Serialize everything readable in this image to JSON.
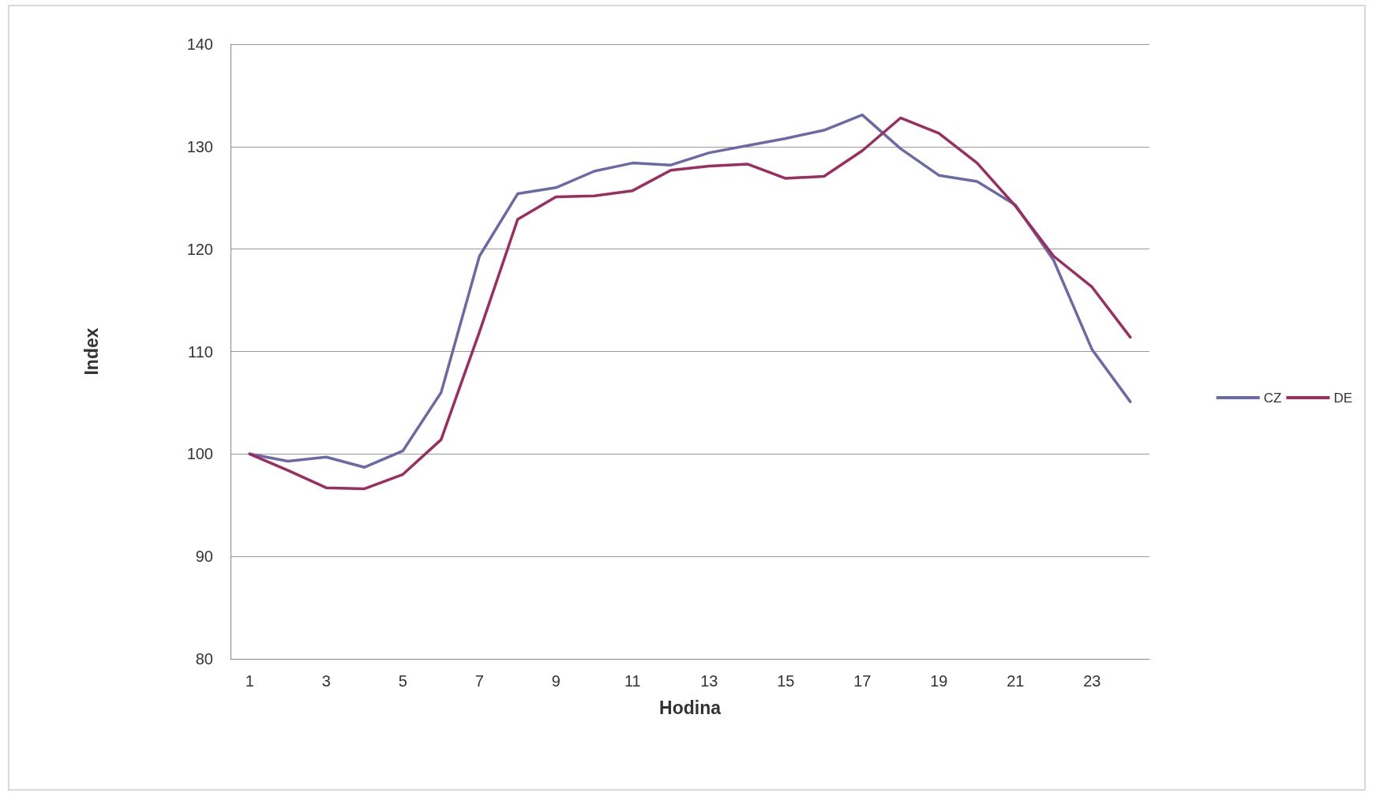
{
  "chart_data": {
    "type": "line",
    "xlabel": "Hodina",
    "ylabel": "Index",
    "x": [
      1,
      2,
      3,
      4,
      5,
      6,
      7,
      8,
      9,
      10,
      11,
      12,
      13,
      14,
      15,
      16,
      17,
      18,
      19,
      20,
      21,
      22,
      23,
      24
    ],
    "xlim": [
      0.5,
      24.5
    ],
    "xticks": [
      1,
      3,
      5,
      7,
      9,
      11,
      13,
      15,
      17,
      19,
      21,
      23
    ],
    "series": [
      {
        "name": "CZ",
        "color": "#6b6aa6",
        "values": [
          100,
          99.3,
          99.7,
          98.7,
          100.3,
          106,
          119.3,
          125.4,
          126,
          127.6,
          128.4,
          128.2,
          129.4,
          130.1,
          130.8,
          131.6,
          133.1,
          129.8,
          127.2,
          126.6,
          124.3,
          118.9,
          110.2,
          105.1
        ]
      },
      {
        "name": "DE",
        "color": "#9b2d5f",
        "values": [
          100,
          98.4,
          96.7,
          96.6,
          98,
          101.4,
          111.9,
          122.9,
          125.1,
          125.2,
          125.7,
          127.7,
          128.1,
          128.3,
          126.9,
          127.1,
          129.6,
          132.8,
          131.3,
          128.4,
          124.2,
          119.3,
          116.3,
          111.4
        ]
      }
    ],
    "ylim": [
      80,
      140
    ],
    "yticks": [
      80,
      90,
      100,
      110,
      120,
      130,
      140
    ],
    "grid": "y",
    "legend": "right",
    "marker": "none",
    "line_style": "solid"
  }
}
